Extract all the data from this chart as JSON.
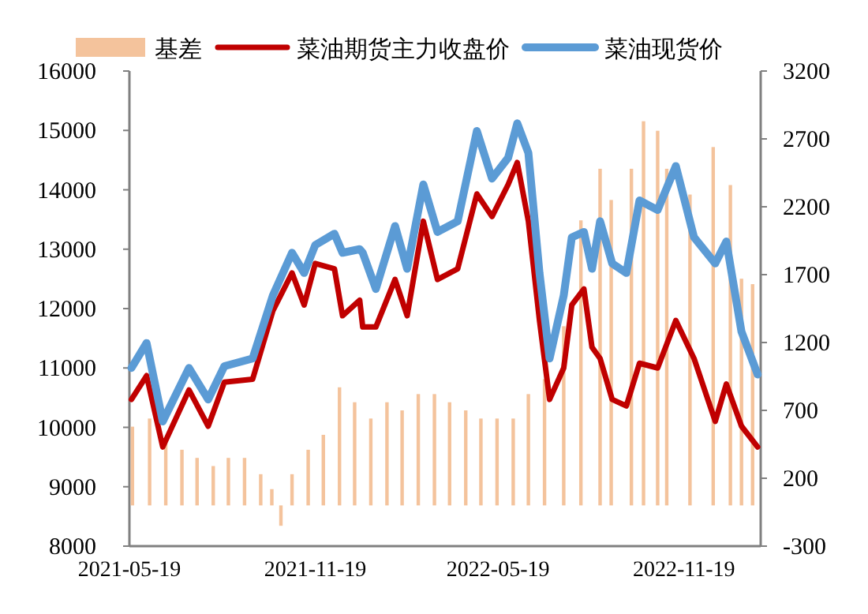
{
  "chart_data": {
    "type": "line",
    "xlim": [
      "2021-05-19",
      "2023-02-03"
    ],
    "xticks": [
      "2021-05-19",
      "2021-11-19",
      "2022-05-19",
      "2022-11-19"
    ],
    "ylim": [
      8000,
      16000
    ],
    "yticks": [
      8000,
      9000,
      10000,
      11000,
      12000,
      13000,
      14000,
      15000,
      16000
    ],
    "y2lim": [
      -300,
      3200
    ],
    "y2ticks": [
      -300,
      200,
      700,
      1200,
      1700,
      2200,
      2700,
      3200
    ],
    "grid": false,
    "legend": "top",
    "series": [
      {
        "name": "基差",
        "type": "bar",
        "axis": "y2",
        "color": "#f4c39c",
        "x": [
          "2021-05-22",
          "2021-06-08",
          "2021-06-24",
          "2021-07-10",
          "2021-07-25",
          "2021-08-10",
          "2021-08-25",
          "2021-09-10",
          "2021-09-26",
          "2021-10-07",
          "2021-10-16",
          "2021-10-27",
          "2021-11-12",
          "2021-11-27",
          "2021-12-13",
          "2021-12-28",
          "2022-01-13",
          "2022-01-29",
          "2022-02-13",
          "2022-03-01",
          "2022-03-17",
          "2022-04-01",
          "2022-04-17",
          "2022-05-02",
          "2022-05-18",
          "2022-06-03",
          "2022-06-18",
          "2022-07-04",
          "2022-07-23",
          "2022-08-09",
          "2022-08-28",
          "2022-09-08",
          "2022-09-28",
          "2022-10-10",
          "2022-10-24",
          "2022-11-02",
          "2022-11-25",
          "2022-12-18",
          "2023-01-04",
          "2023-01-15",
          "2023-01-26"
        ],
        "values": [
          580,
          640,
          470,
          410,
          350,
          290,
          350,
          350,
          230,
          120,
          -150,
          230,
          410,
          520,
          870,
          760,
          640,
          760,
          700,
          820,
          820,
          760,
          700,
          640,
          640,
          640,
          820,
          930,
          1320,
          2100,
          2480,
          2250,
          2480,
          2830,
          2760,
          2480,
          2290,
          2640,
          2360,
          1670,
          1630
        ]
      },
      {
        "name": "菜油期货主力收盘价",
        "color": "#c00000",
        "x": [
          "2021-05-21",
          "2021-06-05",
          "2021-06-21",
          "2021-07-17",
          "2021-08-05",
          "2021-08-21",
          "2021-09-18",
          "2021-10-08",
          "2021-10-27",
          "2021-11-08",
          "2021-11-19",
          "2021-12-08",
          "2021-12-16",
          "2022-01-02",
          "2022-01-05",
          "2022-01-18",
          "2022-02-06",
          "2022-02-18",
          "2022-03-06",
          "2022-03-20",
          "2022-04-09",
          "2022-04-28",
          "2022-05-13",
          "2022-05-29",
          "2022-06-07",
          "2022-06-18",
          "2022-06-29",
          "2022-07-09",
          "2022-07-23",
          "2022-07-31",
          "2022-08-12",
          "2022-08-20",
          "2022-08-28",
          "2022-09-09",
          "2022-09-23",
          "2022-10-06",
          "2022-10-24",
          "2022-11-11",
          "2022-11-29",
          "2022-12-20",
          "2022-12-31",
          "2023-01-15",
          "2023-01-31"
        ],
        "values": [
          10470,
          10870,
          9670,
          10630,
          10020,
          10760,
          10810,
          11960,
          12600,
          12060,
          12760,
          12670,
          11880,
          12140,
          11690,
          11690,
          12490,
          11880,
          13470,
          12490,
          12670,
          13930,
          13550,
          14090,
          14460,
          13470,
          11800,
          10470,
          11000,
          12060,
          12330,
          11350,
          11160,
          10470,
          10360,
          11080,
          11000,
          11800,
          11160,
          10100,
          10730,
          10020,
          9670
        ]
      },
      {
        "name": "菜油现货价",
        "color": "#5b9bd5",
        "x": [
          "2021-05-21",
          "2021-06-05",
          "2021-06-21",
          "2021-07-17",
          "2021-08-05",
          "2021-08-21",
          "2021-09-18",
          "2021-10-08",
          "2021-10-27",
          "2021-11-08",
          "2021-11-19",
          "2021-12-08",
          "2021-12-16",
          "2022-01-02",
          "2022-01-05",
          "2022-01-18",
          "2022-02-06",
          "2022-02-18",
          "2022-03-06",
          "2022-03-20",
          "2022-04-09",
          "2022-04-28",
          "2022-05-13",
          "2022-05-29",
          "2022-06-07",
          "2022-06-18",
          "2022-06-29",
          "2022-07-09",
          "2022-07-23",
          "2022-07-31",
          "2022-08-12",
          "2022-08-20",
          "2022-08-28",
          "2022-09-09",
          "2022-09-23",
          "2022-10-06",
          "2022-10-24",
          "2022-11-11",
          "2022-11-29",
          "2022-12-20",
          "2022-12-31",
          "2023-01-15",
          "2023-01-31"
        ],
        "values": [
          11000,
          11420,
          10100,
          11000,
          10470,
          11030,
          11160,
          12220,
          12940,
          12600,
          13070,
          13260,
          12940,
          13000,
          12940,
          12330,
          13390,
          12670,
          14090,
          13290,
          13470,
          14990,
          14190,
          14540,
          15120,
          14620,
          12600,
          11160,
          12220,
          13200,
          13290,
          12670,
          13470,
          12760,
          12600,
          13820,
          13660,
          14400,
          13200,
          12760,
          13130,
          11610,
          10890
        ]
      }
    ]
  }
}
